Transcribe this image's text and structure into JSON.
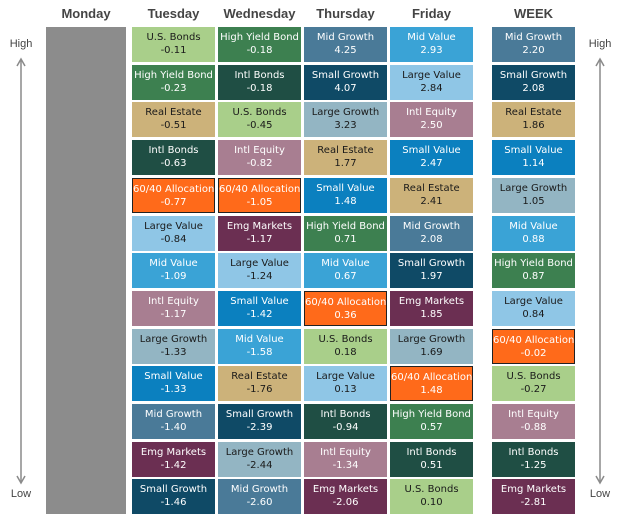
{
  "chart_data": {
    "type": "table",
    "headers": [
      "Monday",
      "Tuesday",
      "Wednesday",
      "Thursday",
      "Friday",
      "WEEK"
    ],
    "labels": {
      "high_left": "High",
      "low_left": "Low",
      "high_right": "High",
      "low_right": "Low"
    },
    "colors": {
      "U.S. Bonds": "#a9cf8a",
      "High Yield Bond": "#3d8050",
      "Real Estate": "#ccb27a",
      "Intl Bonds": "#1f4e44",
      "60/40 Allocation": "#ff6a1a",
      "Large Value": "#8fc6e6",
      "Mid Value": "#3aa3d6",
      "Intl Equity": "#a87e91",
      "Large Growth": "#93b5c3",
      "Small Value": "#0b80bf",
      "Mid Growth": "#4a7a98",
      "Emg Markets": "#6b2f52",
      "Small Growth": "#0f4a66"
    },
    "columns": [
      {
        "day": "Monday",
        "cells": []
      },
      {
        "day": "Tuesday",
        "cells": [
          {
            "name": "U.S. Bonds",
            "value": "-0.11"
          },
          {
            "name": "High Yield Bond",
            "value": "-0.23"
          },
          {
            "name": "Real Estate",
            "value": "-0.51"
          },
          {
            "name": "Intl Bonds",
            "value": "-0.63"
          },
          {
            "name": "60/40 Allocation",
            "value": "-0.77"
          },
          {
            "name": "Large Value",
            "value": "-0.84"
          },
          {
            "name": "Mid Value",
            "value": "-1.09"
          },
          {
            "name": "Intl Equity",
            "value": "-1.17"
          },
          {
            "name": "Large Growth",
            "value": "-1.33"
          },
          {
            "name": "Small Value",
            "value": "-1.33"
          },
          {
            "name": "Mid Growth",
            "value": "-1.40"
          },
          {
            "name": "Emg Markets",
            "value": "-1.42"
          },
          {
            "name": "Small Growth",
            "value": "-1.46"
          }
        ]
      },
      {
        "day": "Wednesday",
        "cells": [
          {
            "name": "High Yield Bond",
            "value": "-0.18"
          },
          {
            "name": "Intl Bonds",
            "value": "-0.18"
          },
          {
            "name": "U.S. Bonds",
            "value": "-0.45"
          },
          {
            "name": "Intl Equity",
            "value": "-0.82"
          },
          {
            "name": "60/40 Allocation",
            "value": "-1.05"
          },
          {
            "name": "Emg Markets",
            "value": "-1.17"
          },
          {
            "name": "Large Value",
            "value": "-1.24"
          },
          {
            "name": "Small Value",
            "value": "-1.42"
          },
          {
            "name": "Mid Value",
            "value": "-1.58"
          },
          {
            "name": "Real Estate",
            "value": "-1.76"
          },
          {
            "name": "Small Growth",
            "value": "-2.39"
          },
          {
            "name": "Large Growth",
            "value": "-2.44"
          },
          {
            "name": "Mid Growth",
            "value": "-2.60"
          }
        ]
      },
      {
        "day": "Thursday",
        "cells": [
          {
            "name": "Mid Growth",
            "value": "4.25"
          },
          {
            "name": "Small Growth",
            "value": "4.07"
          },
          {
            "name": "Large Growth",
            "value": "3.23"
          },
          {
            "name": "Real Estate",
            "value": "1.77"
          },
          {
            "name": "Small Value",
            "value": "1.48"
          },
          {
            "name": "High Yield Bond",
            "value": "0.71"
          },
          {
            "name": "Mid Value",
            "value": "0.67"
          },
          {
            "name": "60/40 Allocation",
            "value": "0.36"
          },
          {
            "name": "U.S. Bonds",
            "value": "0.18"
          },
          {
            "name": "Large Value",
            "value": "0.13"
          },
          {
            "name": "Intl Bonds",
            "value": "-0.94"
          },
          {
            "name": "Intl Equity",
            "value": "-1.34"
          },
          {
            "name": "Emg Markets",
            "value": "-2.06"
          }
        ]
      },
      {
        "day": "Friday",
        "cells": [
          {
            "name": "Mid Value",
            "value": "2.93"
          },
          {
            "name": "Large Value",
            "value": "2.84"
          },
          {
            "name": "Intl Equity",
            "value": "2.50"
          },
          {
            "name": "Small Value",
            "value": "2.47"
          },
          {
            "name": "Real Estate",
            "value": "2.41"
          },
          {
            "name": "Mid Growth",
            "value": "2.08"
          },
          {
            "name": "Small Growth",
            "value": "1.97"
          },
          {
            "name": "Emg Markets",
            "value": "1.85"
          },
          {
            "name": "Large Growth",
            "value": "1.69"
          },
          {
            "name": "60/40 Allocation",
            "value": "1.48"
          },
          {
            "name": "High Yield Bond",
            "value": "0.57"
          },
          {
            "name": "Intl Bonds",
            "value": "0.51"
          },
          {
            "name": "U.S. Bonds",
            "value": "0.10"
          }
        ]
      },
      {
        "day": "WEEK",
        "cells": [
          {
            "name": "Mid Growth",
            "value": "2.20"
          },
          {
            "name": "Small Growth",
            "value": "2.08"
          },
          {
            "name": "Real Estate",
            "value": "1.86"
          },
          {
            "name": "Small Value",
            "value": "1.14"
          },
          {
            "name": "Large Growth",
            "value": "1.05"
          },
          {
            "name": "Mid Value",
            "value": "0.88"
          },
          {
            "name": "High Yield Bond",
            "value": "0.87"
          },
          {
            "name": "Large Value",
            "value": "0.84"
          },
          {
            "name": "60/40 Allocation",
            "value": "-0.02"
          },
          {
            "name": "U.S. Bonds",
            "value": "-0.27"
          },
          {
            "name": "Intl Equity",
            "value": "-0.88"
          },
          {
            "name": "Intl Bonds",
            "value": "-1.25"
          },
          {
            "name": "Emg Markets",
            "value": "-2.81"
          }
        ]
      }
    ]
  }
}
